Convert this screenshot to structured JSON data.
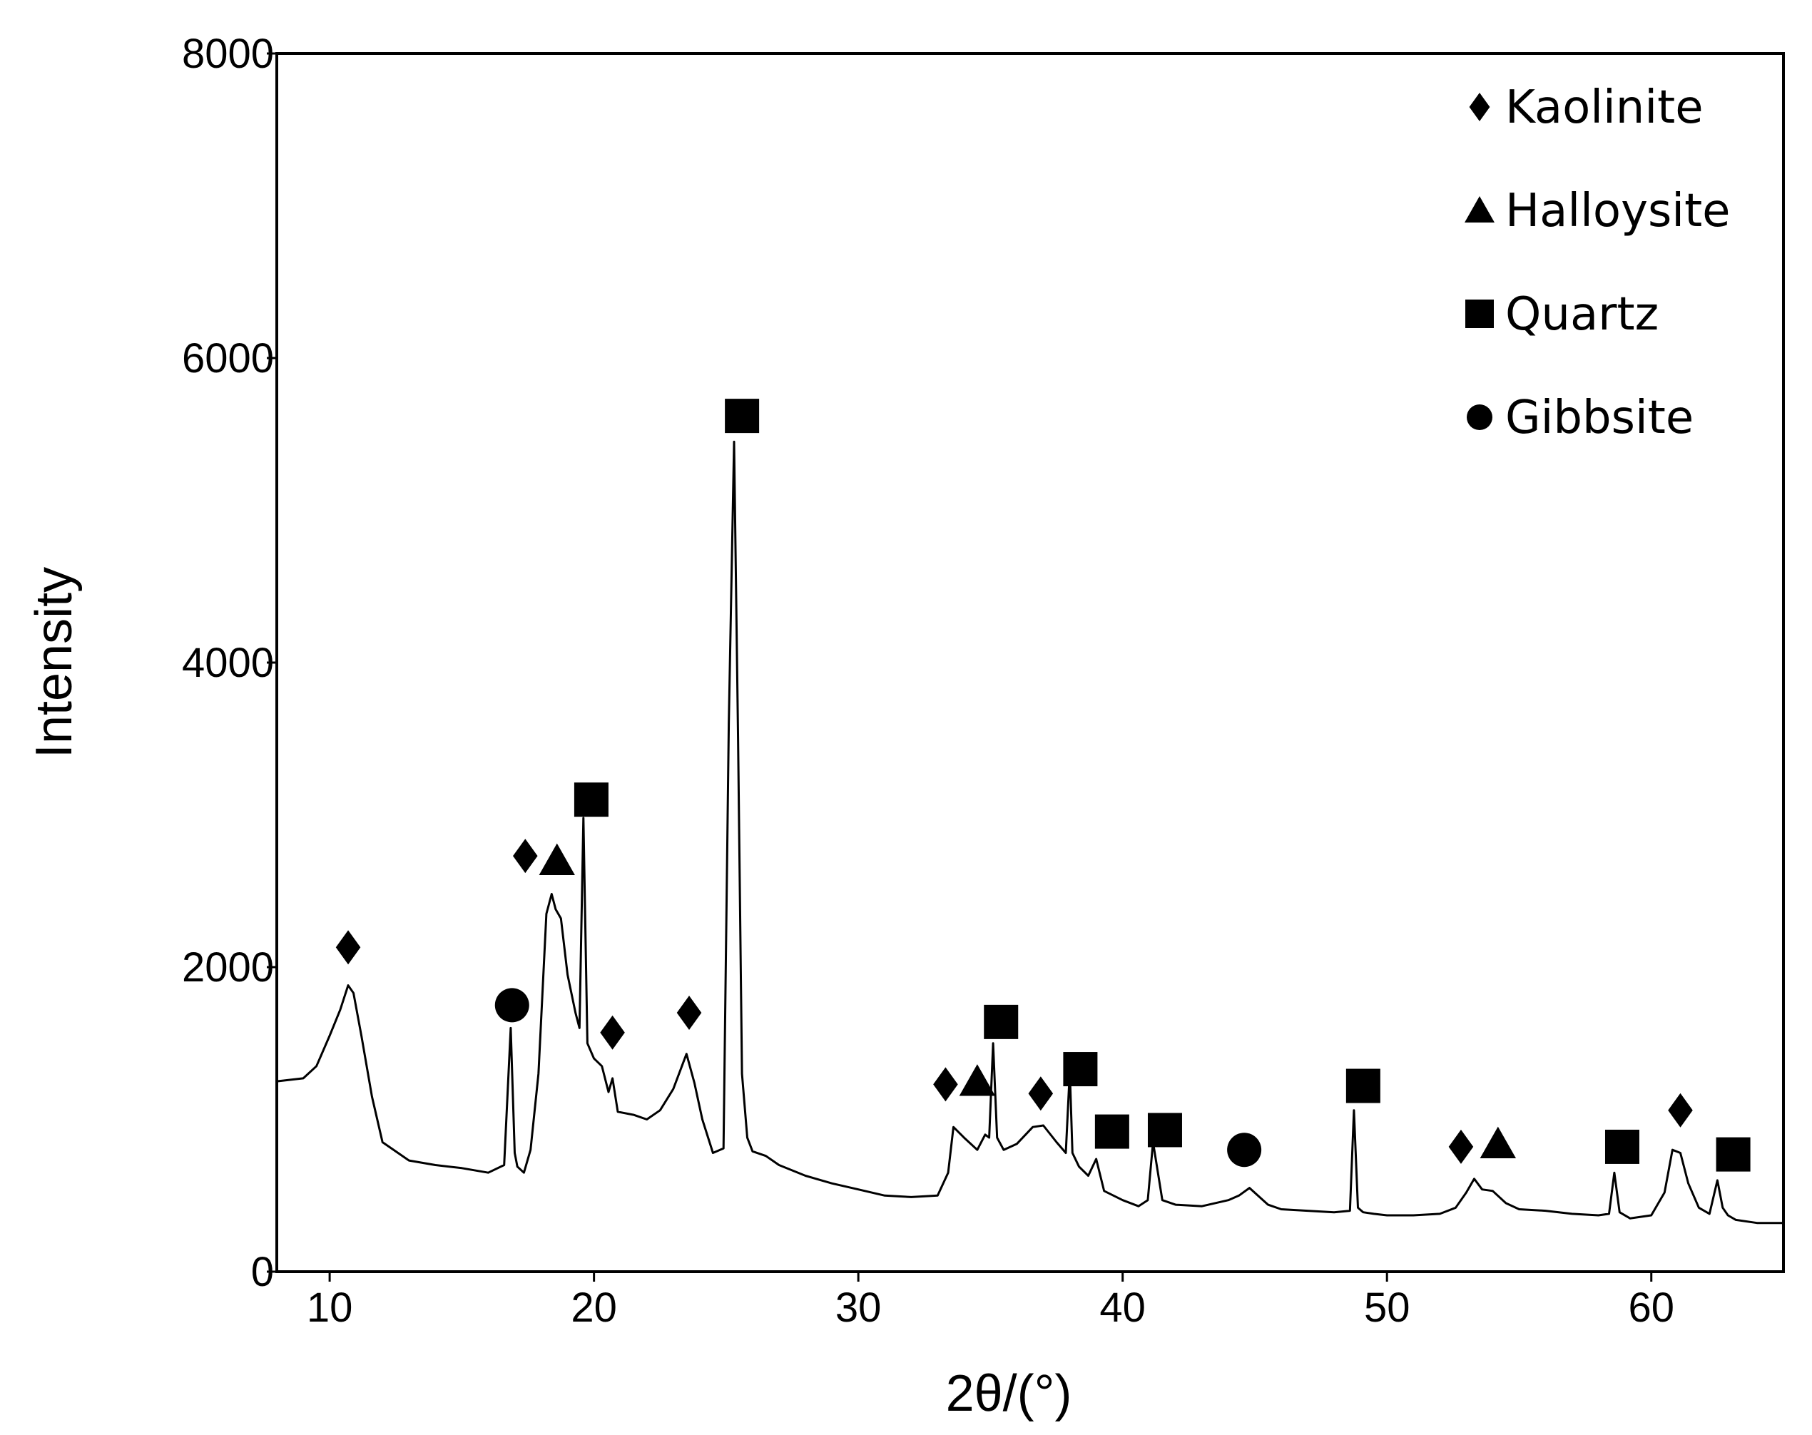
{
  "chart_data": {
    "type": "line",
    "title": "",
    "xlabel": "2θ/(°)",
    "ylabel": "Intensity",
    "xlim": [
      8,
      65
    ],
    "ylim": [
      0,
      8000
    ],
    "xticks": [
      10,
      20,
      30,
      40,
      50,
      60
    ],
    "yticks": [
      0,
      2000,
      4000,
      6000,
      8000
    ],
    "grid": false,
    "legend_position": "top-right",
    "legend": [
      {
        "label": "Kaolinite",
        "marker": "diamond"
      },
      {
        "label": "Halloysite",
        "marker": "triangle"
      },
      {
        "label": "Quartz",
        "marker": "square"
      },
      {
        "label": "Gibbsite",
        "marker": "circle"
      }
    ],
    "series": [
      {
        "name": "XRD pattern",
        "x": [
          8,
          9,
          9.5,
          10,
          10.4,
          10.7,
          10.9,
          11.2,
          11.6,
          12,
          13,
          14,
          15,
          16,
          16.6,
          16.85,
          17,
          17.1,
          17.35,
          17.6,
          17.9,
          18.2,
          18.4,
          18.55,
          18.75,
          19.0,
          19.3,
          19.45,
          19.6,
          19.75,
          20,
          20.3,
          20.55,
          20.7,
          20.9,
          21.5,
          22,
          22.5,
          23,
          23.5,
          23.8,
          24.1,
          24.5,
          24.9,
          25.1,
          25.3,
          25.45,
          25.6,
          25.8,
          26,
          26.5,
          27,
          28,
          29,
          30,
          31,
          32,
          33,
          33.4,
          33.6,
          34,
          34.5,
          34.8,
          34.95,
          35.1,
          35.25,
          35.5,
          36,
          36.6,
          37,
          37.5,
          37.85,
          38.0,
          38.1,
          38.35,
          38.7,
          39.0,
          39.3,
          40,
          40.6,
          40.95,
          41.15,
          41.5,
          42,
          43,
          44,
          44.4,
          44.8,
          45.5,
          46,
          47,
          48,
          48.6,
          48.75,
          48.9,
          49.1,
          49.5,
          50,
          51,
          52,
          52.6,
          53,
          53.3,
          53.6,
          54,
          54.5,
          55,
          56,
          57,
          58,
          58.4,
          58.6,
          58.8,
          59.2,
          59.6,
          60,
          60.5,
          60.8,
          61.1,
          61.4,
          61.8,
          62.2,
          62.5,
          62.7,
          62.9,
          63.2,
          64,
          65
        ],
        "y": [
          1250,
          1270,
          1350,
          1550,
          1720,
          1880,
          1830,
          1550,
          1150,
          850,
          730,
          700,
          680,
          650,
          700,
          1600,
          780,
          690,
          650,
          800,
          1300,
          2350,
          2480,
          2380,
          2320,
          1950,
          1700,
          1600,
          2980,
          1500,
          1400,
          1350,
          1180,
          1270,
          1050,
          1030,
          1000,
          1060,
          1200,
          1430,
          1240,
          1000,
          780,
          810,
          3600,
          5450,
          3500,
          1300,
          880,
          790,
          760,
          700,
          630,
          580,
          540,
          500,
          490,
          500,
          650,
          950,
          880,
          800,
          900,
          880,
          1500,
          880,
          800,
          840,
          950,
          960,
          850,
          780,
          1320,
          780,
          690,
          630,
          740,
          530,
          470,
          430,
          470,
          850,
          470,
          440,
          430,
          470,
          500,
          550,
          440,
          410,
          400,
          390,
          400,
          1060,
          420,
          390,
          380,
          370,
          370,
          380,
          420,
          520,
          610,
          540,
          530,
          450,
          410,
          400,
          380,
          370,
          380,
          650,
          390,
          350,
          360,
          370,
          520,
          800,
          780,
          580,
          420,
          380,
          600,
          420,
          370,
          340,
          320,
          320
        ]
      }
    ],
    "annotations": [
      {
        "phase": "Kaolinite",
        "marker": "diamond",
        "x": 10.7,
        "y": 2130
      },
      {
        "phase": "Gibbsite",
        "marker": "circle",
        "x": 16.9,
        "y": 1750
      },
      {
        "phase": "Kaolinite",
        "marker": "diamond",
        "x": 17.4,
        "y": 2730
      },
      {
        "phase": "Halloysite",
        "marker": "triangle",
        "x": 18.6,
        "y": 2700
      },
      {
        "phase": "Quartz",
        "marker": "square",
        "x": 19.9,
        "y": 3100
      },
      {
        "phase": "Kaolinite",
        "marker": "diamond",
        "x": 20.7,
        "y": 1570
      },
      {
        "phase": "Kaolinite",
        "marker": "diamond",
        "x": 23.6,
        "y": 1700
      },
      {
        "phase": "Quartz",
        "marker": "square",
        "x": 25.6,
        "y": 5620
      },
      {
        "phase": "Kaolinite",
        "marker": "diamond",
        "x": 33.3,
        "y": 1230
      },
      {
        "phase": "Halloysite",
        "marker": "triangle",
        "x": 34.5,
        "y": 1250
      },
      {
        "phase": "Quartz",
        "marker": "square",
        "x": 35.4,
        "y": 1640
      },
      {
        "phase": "Kaolinite",
        "marker": "diamond",
        "x": 36.9,
        "y": 1170
      },
      {
        "phase": "Quartz",
        "marker": "square",
        "x": 38.4,
        "y": 1330
      },
      {
        "phase": "Quartz",
        "marker": "square",
        "x": 39.6,
        "y": 920
      },
      {
        "phase": "Quartz",
        "marker": "square",
        "x": 41.6,
        "y": 930
      },
      {
        "phase": "Gibbsite",
        "marker": "circle",
        "x": 44.6,
        "y": 800
      },
      {
        "phase": "Quartz",
        "marker": "square",
        "x": 49.1,
        "y": 1220
      },
      {
        "phase": "Kaolinite",
        "marker": "diamond",
        "x": 52.8,
        "y": 820
      },
      {
        "phase": "Halloysite",
        "marker": "triangle",
        "x": 54.2,
        "y": 840
      },
      {
        "phase": "Quartz",
        "marker": "square",
        "x": 58.9,
        "y": 820
      },
      {
        "phase": "Kaolinite",
        "marker": "diamond",
        "x": 61.1,
        "y": 1060
      },
      {
        "phase": "Quartz",
        "marker": "square",
        "x": 63.1,
        "y": 770
      }
    ]
  },
  "colors": {
    "line": "#000000",
    "marker": "#000000",
    "axis": "#000000",
    "background": "#ffffff"
  }
}
